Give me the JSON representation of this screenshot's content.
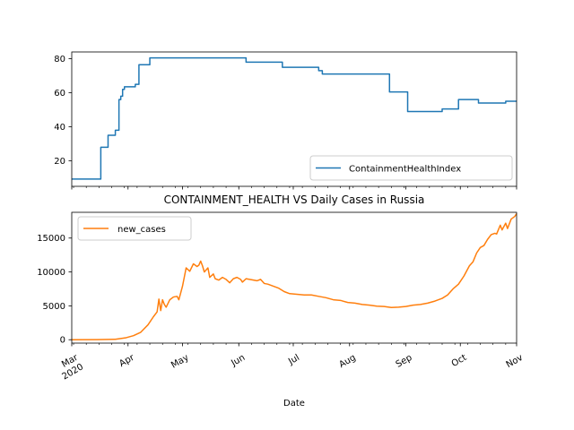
{
  "chart_data": [
    {
      "type": "line",
      "title": "",
      "xlabel": "",
      "ylabel": "",
      "x_range": [
        "2020-03-01",
        "2020-11-01"
      ],
      "ylim": [
        5,
        84
      ],
      "yticks": [
        20,
        40,
        60,
        80
      ],
      "grid": false,
      "legend_position": "lower-right",
      "series": [
        {
          "name": "ContainmentHealthIndex",
          "color": "#1f77b4",
          "step_points": [
            [
              "2020-03-01",
              9.3
            ],
            [
              "2020-03-17",
              9.3
            ],
            [
              "2020-03-17",
              28
            ],
            [
              "2020-03-21",
              28
            ],
            [
              "2020-03-21",
              35
            ],
            [
              "2020-03-25",
              35
            ],
            [
              "2020-03-25",
              38
            ],
            [
              "2020-03-27",
              38
            ],
            [
              "2020-03-27",
              56
            ],
            [
              "2020-03-28",
              56
            ],
            [
              "2020-03-28",
              58
            ],
            [
              "2020-03-29",
              58
            ],
            [
              "2020-03-29",
              62
            ],
            [
              "2020-03-30",
              62
            ],
            [
              "2020-03-30",
              63.5
            ],
            [
              "2020-04-05",
              63.5
            ],
            [
              "2020-04-05",
              65
            ],
            [
              "2020-04-07",
              65
            ],
            [
              "2020-04-07",
              76.5
            ],
            [
              "2020-04-13",
              76.5
            ],
            [
              "2020-04-13",
              80.5
            ],
            [
              "2020-06-05",
              80.5
            ],
            [
              "2020-06-05",
              78
            ],
            [
              "2020-06-25",
              78
            ],
            [
              "2020-06-25",
              75
            ],
            [
              "2020-07-15",
              75
            ],
            [
              "2020-07-15",
              73
            ],
            [
              "2020-07-17",
              73
            ],
            [
              "2020-07-17",
              71
            ],
            [
              "2020-08-23",
              71
            ],
            [
              "2020-08-23",
              60.5
            ],
            [
              "2020-09-02",
              60.5
            ],
            [
              "2020-09-02",
              49
            ],
            [
              "2020-09-21",
              49
            ],
            [
              "2020-09-21",
              50.5
            ],
            [
              "2020-09-30",
              50.5
            ],
            [
              "2020-09-30",
              56
            ],
            [
              "2020-10-11",
              56
            ],
            [
              "2020-10-11",
              54
            ],
            [
              "2020-10-26",
              54
            ],
            [
              "2020-10-26",
              55
            ],
            [
              "2020-11-01",
              55
            ]
          ]
        }
      ]
    },
    {
      "type": "line",
      "title": "CONTAINMENT_HEALTH VS Daily Cases in Russia",
      "xlabel": "Date",
      "ylabel": "",
      "x_range": [
        "2020-03-01",
        "2020-11-01"
      ],
      "ylim": [
        -500,
        18800
      ],
      "yticks": [
        0,
        5000,
        10000,
        15000
      ],
      "xtick_labels": [
        {
          "date": "2020-03-01",
          "lines": [
            "Mar",
            "2020"
          ]
        },
        {
          "date": "2020-04-01",
          "lines": [
            "Apr"
          ]
        },
        {
          "date": "2020-05-01",
          "lines": [
            "May"
          ]
        },
        {
          "date": "2020-06-01",
          "lines": [
            "Jun"
          ]
        },
        {
          "date": "2020-07-01",
          "lines": [
            "Jul"
          ]
        },
        {
          "date": "2020-08-01",
          "lines": [
            "Aug"
          ]
        },
        {
          "date": "2020-09-01",
          "lines": [
            "Sep"
          ]
        },
        {
          "date": "2020-10-01",
          "lines": [
            "Oct"
          ]
        },
        {
          "date": "2020-11-01",
          "lines": [
            "Nov"
          ]
        }
      ],
      "grid": false,
      "legend_position": "upper-left",
      "series": [
        {
          "name": "new_cases",
          "color": "#ff7f0e",
          "points": [
            [
              "2020-03-01",
              0
            ],
            [
              "2020-03-15",
              10
            ],
            [
              "2020-03-25",
              60
            ],
            [
              "2020-03-31",
              300
            ],
            [
              "2020-04-04",
              600
            ],
            [
              "2020-04-08",
              1100
            ],
            [
              "2020-04-12",
              2200
            ],
            [
              "2020-04-15",
              3400
            ],
            [
              "2020-04-17",
              4100
            ],
            [
              "2020-04-18",
              6000
            ],
            [
              "2020-04-19",
              4300
            ],
            [
              "2020-04-20",
              5900
            ],
            [
              "2020-04-21",
              5200
            ],
            [
              "2020-04-22",
              4800
            ],
            [
              "2020-04-24",
              5900
            ],
            [
              "2020-04-26",
              6300
            ],
            [
              "2020-04-28",
              6400
            ],
            [
              "2020-04-29",
              5900
            ],
            [
              "2020-05-01",
              7900
            ],
            [
              "2020-05-03",
              10600
            ],
            [
              "2020-05-05",
              10100
            ],
            [
              "2020-05-07",
              11200
            ],
            [
              "2020-05-09",
              10800
            ],
            [
              "2020-05-10",
              11000
            ],
            [
              "2020-05-11",
              11600
            ],
            [
              "2020-05-12",
              10900
            ],
            [
              "2020-05-13",
              10000
            ],
            [
              "2020-05-15",
              10600
            ],
            [
              "2020-05-16",
              9200
            ],
            [
              "2020-05-18",
              9700
            ],
            [
              "2020-05-19",
              9000
            ],
            [
              "2020-05-21",
              8800
            ],
            [
              "2020-05-23",
              9200
            ],
            [
              "2020-05-25",
              8900
            ],
            [
              "2020-05-27",
              8400
            ],
            [
              "2020-05-29",
              9000
            ],
            [
              "2020-05-31",
              9200
            ],
            [
              "2020-06-02",
              8900
            ],
            [
              "2020-06-03",
              8500
            ],
            [
              "2020-06-05",
              9000
            ],
            [
              "2020-06-07",
              8900
            ],
            [
              "2020-06-09",
              8800
            ],
            [
              "2020-06-11",
              8700
            ],
            [
              "2020-06-13",
              8900
            ],
            [
              "2020-06-15",
              8300
            ],
            [
              "2020-06-17",
              8200
            ],
            [
              "2020-06-20",
              7900
            ],
            [
              "2020-06-23",
              7600
            ],
            [
              "2020-06-26",
              7100
            ],
            [
              "2020-06-29",
              6800
            ],
            [
              "2020-07-03",
              6700
            ],
            [
              "2020-07-07",
              6600
            ],
            [
              "2020-07-11",
              6600
            ],
            [
              "2020-07-15",
              6400
            ],
            [
              "2020-07-19",
              6200
            ],
            [
              "2020-07-23",
              5900
            ],
            [
              "2020-07-27",
              5800
            ],
            [
              "2020-07-31",
              5500
            ],
            [
              "2020-08-04",
              5400
            ],
            [
              "2020-08-08",
              5200
            ],
            [
              "2020-08-12",
              5100
            ],
            [
              "2020-08-16",
              4950
            ],
            [
              "2020-08-20",
              4900
            ],
            [
              "2020-08-24",
              4750
            ],
            [
              "2020-08-28",
              4800
            ],
            [
              "2020-09-01",
              4900
            ],
            [
              "2020-09-05",
              5100
            ],
            [
              "2020-09-09",
              5200
            ],
            [
              "2020-09-13",
              5400
            ],
            [
              "2020-09-17",
              5700
            ],
            [
              "2020-09-21",
              6100
            ],
            [
              "2020-09-24",
              6600
            ],
            [
              "2020-09-27",
              7500
            ],
            [
              "2020-09-30",
              8200
            ],
            [
              "2020-10-03",
              9400
            ],
            [
              "2020-10-06",
              10900
            ],
            [
              "2020-10-08",
              11500
            ],
            [
              "2020-10-10",
              12800
            ],
            [
              "2020-10-12",
              13600
            ],
            [
              "2020-10-14",
              13900
            ],
            [
              "2020-10-16",
              14800
            ],
            [
              "2020-10-18",
              15500
            ],
            [
              "2020-10-20",
              15700
            ],
            [
              "2020-10-21",
              15600
            ],
            [
              "2020-10-23",
              16900
            ],
            [
              "2020-10-24",
              16200
            ],
            [
              "2020-10-26",
              17200
            ],
            [
              "2020-10-27",
              16400
            ],
            [
              "2020-10-29",
              17800
            ],
            [
              "2020-10-31",
              18200
            ],
            [
              "2020-11-01",
              18600
            ]
          ]
        }
      ]
    }
  ]
}
